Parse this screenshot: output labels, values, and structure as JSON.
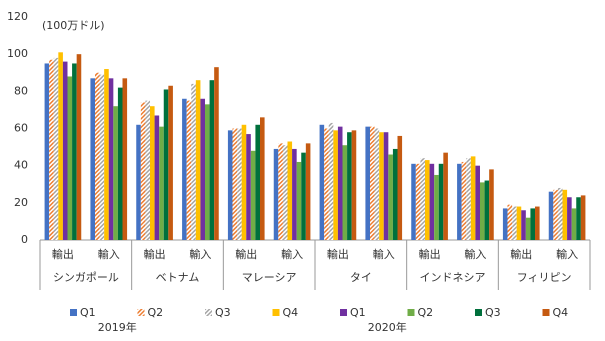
{
  "chart_data": {
    "type": "bar",
    "unit_label": "(100万ドル)",
    "categories": [
      "輸出",
      "輸入",
      "輸出",
      "輸入",
      "輸出",
      "輸入",
      "輸出",
      "輸入",
      "輸出",
      "輸入",
      "輸出",
      "輸入"
    ],
    "groups": [
      "シンガポール",
      "ベトナム",
      "マレーシア",
      "タイ",
      "インドネシア",
      "フィリピン"
    ],
    "years": [
      "2019年",
      "2020年"
    ],
    "series": [
      {
        "name": "Q1",
        "color": "#4472c4",
        "hatch": false,
        "values": [
          95,
          87,
          62,
          76,
          59,
          49,
          62,
          61,
          41,
          41,
          17,
          26
        ]
      },
      {
        "name": "Q2",
        "color": "#ed7d31",
        "hatch": true,
        "values": [
          97,
          90,
          74,
          75,
          60,
          52,
          60,
          61,
          41,
          42,
          19,
          27
        ]
      },
      {
        "name": "Q3",
        "color": "#a5a5a5",
        "hatch": true,
        "values": [
          98,
          89,
          75,
          84,
          60,
          51,
          63,
          60,
          44,
          44,
          18,
          28
        ]
      },
      {
        "name": "Q4",
        "color": "#ffc000",
        "hatch": false,
        "values": [
          101,
          92,
          72,
          86,
          62,
          53,
          59,
          58,
          43,
          45,
          18,
          27
        ]
      },
      {
        "name": "Q1",
        "color": "#7030a0",
        "hatch": false,
        "values": [
          96,
          87,
          67,
          76,
          57,
          49,
          61,
          58,
          41,
          40,
          16,
          23
        ]
      },
      {
        "name": "Q2",
        "color": "#70ad47",
        "hatch": false,
        "values": [
          88,
          72,
          61,
          73,
          48,
          42,
          51,
          46,
          35,
          31,
          12,
          17
        ]
      },
      {
        "name": "Q3",
        "color": "#00703c",
        "hatch": false,
        "values": [
          95,
          82,
          81,
          86,
          62,
          47,
          58,
          49,
          41,
          32,
          17,
          23
        ]
      },
      {
        "name": "Q4",
        "color": "#c55a11",
        "hatch": false,
        "values": [
          100,
          87,
          83,
          93,
          66,
          52,
          59,
          56,
          47,
          38,
          18,
          24
        ]
      }
    ],
    "ylim": [
      0,
      120
    ],
    "yticks": [
      0,
      20,
      40,
      60,
      80,
      100,
      120
    ]
  }
}
